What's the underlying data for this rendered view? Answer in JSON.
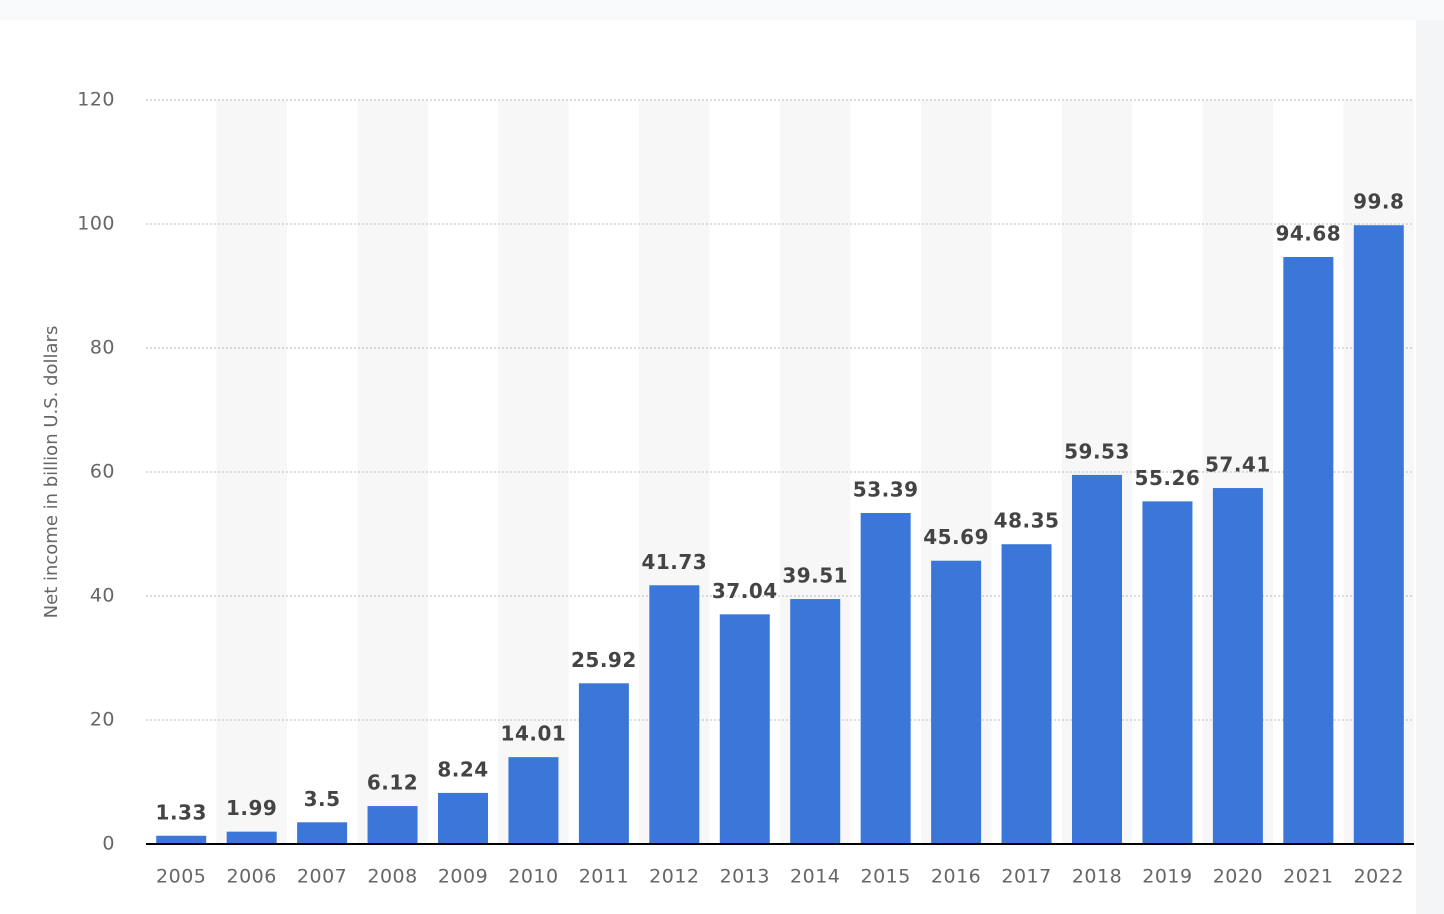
{
  "chart_data": {
    "type": "bar",
    "y_axis_label": "Net income in billion U.S. dollars",
    "categories": [
      "2005",
      "2006",
      "2007",
      "2008",
      "2009",
      "2010",
      "2011",
      "2012",
      "2013",
      "2014",
      "2015",
      "2016",
      "2017",
      "2018",
      "2019",
      "2020",
      "2021",
      "2022"
    ],
    "values": [
      1.33,
      1.99,
      3.5,
      6.12,
      8.24,
      14.01,
      25.92,
      41.73,
      37.04,
      39.51,
      53.39,
      45.69,
      48.35,
      59.53,
      55.26,
      57.41,
      94.68,
      99.8
    ],
    "color": "#3a77d8",
    "ylim": [
      0,
      120
    ],
    "yticks": [
      0,
      20,
      40,
      60,
      80,
      100,
      120
    ],
    "grid": true
  }
}
